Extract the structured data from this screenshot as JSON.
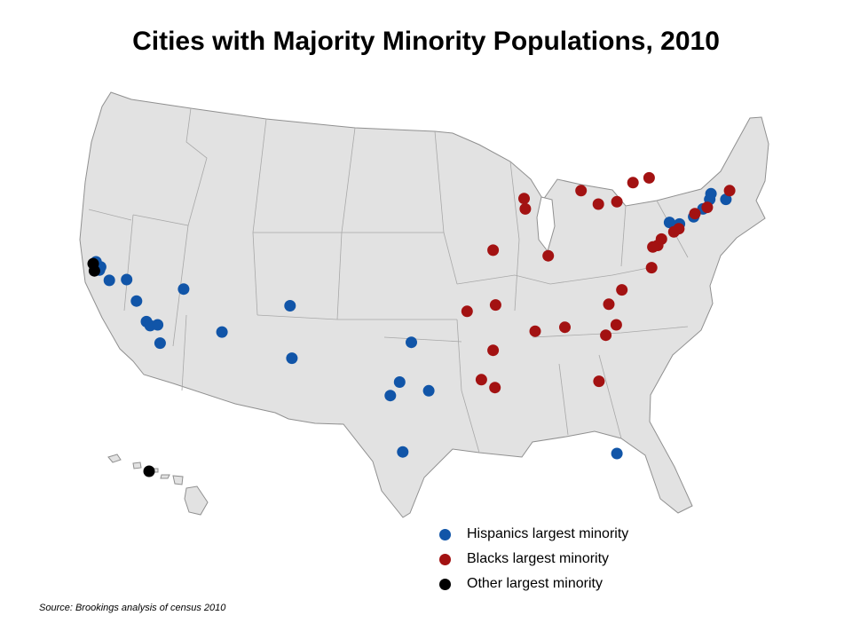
{
  "title": "Cities with Majority Minority Populations, 2010",
  "source": "Source: Brookings analysis of census 2010",
  "colors": {
    "hispanic": "#1155a8",
    "black": "#a31212",
    "other": "#000000",
    "land": "#e2e2e2",
    "border": "#909090"
  },
  "legend": [
    {
      "label": "Hispanics largest minority",
      "category": "hispanic"
    },
    {
      "label": "Blacks largest minority",
      "category": "black"
    },
    {
      "label": "Other largest minority",
      "category": "other"
    }
  ],
  "cities": [
    {
      "category": "hispanic",
      "lon": -122.27,
      "lat": 37.87
    },
    {
      "category": "hispanic",
      "lon": -122.0,
      "lat": 37.35
    },
    {
      "category": "hispanic",
      "lon": -121.9,
      "lat": 37.55
    },
    {
      "category": "hispanic",
      "lon": -121.2,
      "lat": 36.7
    },
    {
      "category": "hispanic",
      "lon": -119.8,
      "lat": 36.75
    },
    {
      "category": "hispanic",
      "lon": -119.0,
      "lat": 35.4
    },
    {
      "category": "hispanic",
      "lon": -118.2,
      "lat": 34.1
    },
    {
      "category": "hispanic",
      "lon": -117.9,
      "lat": 33.85
    },
    {
      "category": "hispanic",
      "lon": -117.3,
      "lat": 33.9
    },
    {
      "category": "hispanic",
      "lon": -117.1,
      "lat": 32.75
    },
    {
      "category": "hispanic",
      "lon": -115.2,
      "lat": 36.15
    },
    {
      "category": "hispanic",
      "lon": -112.1,
      "lat": 33.45
    },
    {
      "category": "hispanic",
      "lon": -106.6,
      "lat": 35.1
    },
    {
      "category": "hispanic",
      "lon": -106.45,
      "lat": 31.8
    },
    {
      "category": "hispanic",
      "lon": -96.8,
      "lat": 32.8
    },
    {
      "category": "hispanic",
      "lon": -97.75,
      "lat": 30.3
    },
    {
      "category": "hispanic",
      "lon": -98.5,
      "lat": 29.45
    },
    {
      "category": "hispanic",
      "lon": -95.4,
      "lat": 29.75
    },
    {
      "category": "hispanic",
      "lon": -97.5,
      "lat": 25.9
    },
    {
      "category": "hispanic",
      "lon": -80.2,
      "lat": 25.8
    },
    {
      "category": "hispanic",
      "lon": -71.4,
      "lat": 41.8
    },
    {
      "category": "hispanic",
      "lon": -72.7,
      "lat": 41.8
    },
    {
      "category": "hispanic",
      "lon": -72.6,
      "lat": 42.15
    },
    {
      "category": "hispanic",
      "lon": -73.25,
      "lat": 41.2
    },
    {
      "category": "hispanic",
      "lon": -74.0,
      "lat": 40.7
    },
    {
      "category": "hispanic",
      "lon": -75.15,
      "lat": 40.25
    },
    {
      "category": "hispanic",
      "lon": -75.95,
      "lat": 40.35
    },
    {
      "category": "black",
      "lon": -87.7,
      "lat": 41.85
    },
    {
      "category": "black",
      "lon": -87.6,
      "lat": 41.2
    },
    {
      "category": "black",
      "lon": -83.1,
      "lat": 42.35
    },
    {
      "category": "black",
      "lon": -81.7,
      "lat": 41.5
    },
    {
      "category": "black",
      "lon": -80.2,
      "lat": 41.65
    },
    {
      "category": "black",
      "lon": -78.9,
      "lat": 42.85
    },
    {
      "category": "black",
      "lon": -77.6,
      "lat": 43.15
    },
    {
      "category": "black",
      "lon": -73.9,
      "lat": 40.9
    },
    {
      "category": "black",
      "lon": -72.9,
      "lat": 41.3
    },
    {
      "category": "black",
      "lon": -71.1,
      "lat": 42.35
    },
    {
      "category": "black",
      "lon": -76.6,
      "lat": 39.3
    },
    {
      "category": "black",
      "lon": -75.6,
      "lat": 39.75
    },
    {
      "category": "black",
      "lon": -75.2,
      "lat": 39.95
    },
    {
      "category": "black",
      "lon": -76.9,
      "lat": 38.9
    },
    {
      "category": "black",
      "lon": -77.3,
      "lat": 38.8
    },
    {
      "category": "black",
      "lon": -77.4,
      "lat": 37.5
    },
    {
      "category": "black",
      "lon": -85.75,
      "lat": 38.25
    },
    {
      "category": "black",
      "lon": -90.2,
      "lat": 38.6
    },
    {
      "category": "black",
      "lon": -90.0,
      "lat": 35.15
    },
    {
      "category": "black",
      "lon": -92.3,
      "lat": 34.75
    },
    {
      "category": "black",
      "lon": -90.2,
      "lat": 32.3
    },
    {
      "category": "black",
      "lon": -91.15,
      "lat": 30.45
    },
    {
      "category": "black",
      "lon": -90.05,
      "lat": 29.95
    },
    {
      "category": "black",
      "lon": -86.8,
      "lat": 33.5
    },
    {
      "category": "black",
      "lon": -84.4,
      "lat": 33.75
    },
    {
      "category": "black",
      "lon": -81.1,
      "lat": 33.25
    },
    {
      "category": "black",
      "lon": -80.85,
      "lat": 35.2
    },
    {
      "category": "black",
      "lon": -79.8,
      "lat": 36.1
    },
    {
      "category": "black",
      "lon": -80.25,
      "lat": 33.9
    },
    {
      "category": "black",
      "lon": -81.65,
      "lat": 30.35
    },
    {
      "category": "other",
      "lon": -122.5,
      "lat": 37.75
    },
    {
      "category": "other",
      "lon": -122.4,
      "lat": 37.3
    },
    {
      "category": "other",
      "lon": -157.85,
      "lat": 21.3
    }
  ]
}
